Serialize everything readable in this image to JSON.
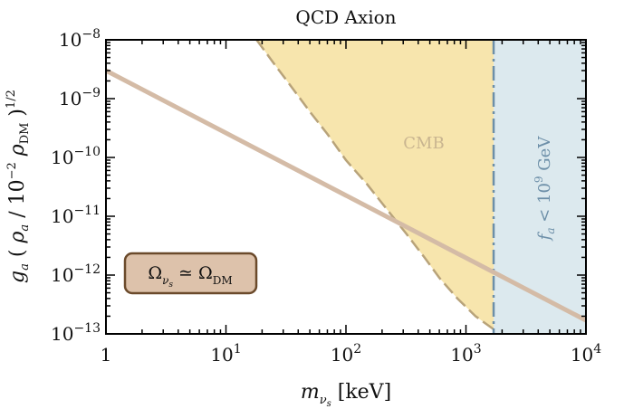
{
  "chart_data": {
    "type": "line",
    "title": "QCD Axion",
    "xlabel": "m_{ν_s} [keV]",
    "ylabel": "g_a ( ρ_a / 10^{-2} ρ_DM )^{1/2}",
    "xscale": "log",
    "yscale": "log",
    "xlim": [
      1,
      10000
    ],
    "ylim": [
      1e-13,
      1e-08
    ],
    "x_ticks": [
      {
        "value": 1,
        "label": "1"
      },
      {
        "value": 10,
        "label": "10^1"
      },
      {
        "value": 100,
        "label": "10^2"
      },
      {
        "value": 1000,
        "label": "10^3"
      },
      {
        "value": 10000,
        "label": "10^4"
      }
    ],
    "y_ticks": [
      {
        "value": 1e-08,
        "label": "10^-8"
      },
      {
        "value": 1e-09,
        "label": "10^-9"
      },
      {
        "value": 1e-10,
        "label": "10^-10"
      },
      {
        "value": 1e-11,
        "label": "10^-11"
      },
      {
        "value": 1e-12,
        "label": "10^-12"
      },
      {
        "value": 1e-13,
        "label": "10^-13"
      }
    ],
    "grid": false,
    "series": [
      {
        "name": "Ω_{ν_s} ≃ Ω_DM",
        "kind": "line",
        "color": "#d4bba6",
        "x": [
          1,
          10000
        ],
        "y": [
          3e-09,
          1.7e-13
        ]
      }
    ],
    "regions": [
      {
        "name": "CMB",
        "kind": "excluded-region",
        "fill": "#f7e5ad",
        "edge": "#b8a37a",
        "boundary_x": [
          18,
          25,
          35,
          50,
          70,
          100,
          150,
          220,
          320,
          450,
          600,
          850,
          1200,
          1700
        ],
        "boundary_y": [
          1e-08,
          4e-09,
          1.6e-09,
          6e-10,
          2.5e-10,
          9e-11,
          3.5e-11,
          1.3e-11,
          5e-12,
          2e-12,
          9e-13,
          4e-13,
          2e-13,
          1.2e-13
        ],
        "x_right": 1700
      },
      {
        "name": "f_a < 10^9 GeV",
        "kind": "excluded-region",
        "fill": "#dce9ee",
        "edge": "#6d8fa8",
        "x_min": 1700,
        "x_max": 10000
      }
    ],
    "annotations": [
      {
        "text": "CMB",
        "color": "#c9b590"
      },
      {
        "text": "f_a < 10^9 GeV",
        "color": "#6d8fa8"
      },
      {
        "text": "Ω_{ν_s} ≃ Ω_DM",
        "color": "#111111",
        "box_fill": "#ddc2ab",
        "box_edge": "#6b4a2b"
      }
    ]
  }
}
